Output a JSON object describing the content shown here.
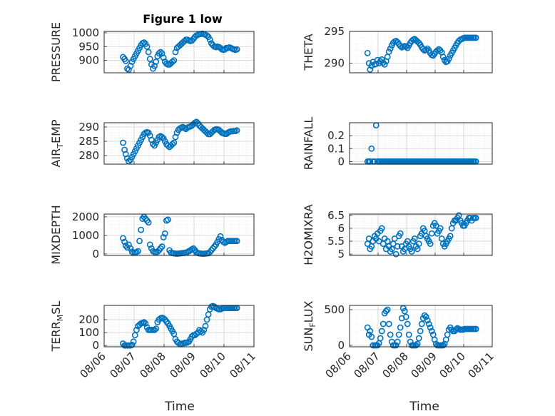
{
  "figure": {
    "title": "Figure 1 low",
    "xlabel": "Time"
  },
  "x_ticks": [
    "08/06",
    "08/07",
    "08/08",
    "08/09",
    "08/10",
    "08/11"
  ],
  "marker_color": "#0072BD",
  "chart_data": [
    {
      "type": "scatter",
      "ylabel": "PRESSURE",
      "subscript": "",
      "title": "Figure 1 low",
      "xlim": [
        0,
        5
      ],
      "ylim": [
        855,
        1005
      ],
      "yticks": [
        900,
        950,
        1000
      ],
      "x": [
        0.63,
        0.68,
        0.72,
        0.77,
        0.82,
        0.88,
        0.93,
        0.98,
        1.03,
        1.08,
        1.13,
        1.18,
        1.23,
        1.28,
        1.33,
        1.38,
        1.43,
        1.48,
        1.53,
        1.58,
        1.63,
        1.68,
        1.73,
        1.78,
        1.83,
        1.88,
        1.93,
        1.98,
        2.03,
        2.08,
        2.13,
        2.18,
        2.23,
        2.28,
        2.33,
        2.38,
        2.43,
        2.48,
        2.53,
        2.58,
        2.63,
        2.68,
        2.73,
        2.78,
        2.83,
        2.88,
        2.93,
        2.98,
        3.03,
        3.08,
        3.13,
        3.18,
        3.23,
        3.28,
        3.33,
        3.38,
        3.43,
        3.48,
        3.53,
        3.58,
        3.63,
        3.68,
        3.73,
        3.78,
        3.83,
        3.88,
        3.93,
        3.98,
        4.03,
        4.08,
        4.13,
        4.18,
        4.23,
        4.28,
        4.33,
        4.38,
        4.43
      ],
      "y": [
        912,
        905,
        898,
        870,
        866,
        880,
        895,
        905,
        915,
        925,
        935,
        945,
        955,
        962,
        965,
        960,
        950,
        930,
        905,
        885,
        870,
        880,
        895,
        915,
        925,
        930,
        925,
        910,
        895,
        888,
        885,
        885,
        890,
        895,
        900,
        930,
        945,
        950,
        955,
        960,
        965,
        970,
        975,
        975,
        972,
        970,
        972,
        978,
        985,
        990,
        993,
        995,
        996,
        997,
        995,
        993,
        990,
        985,
        975,
        962,
        955,
        950,
        948,
        950,
        948,
        945,
        940,
        938,
        940,
        945,
        945,
        947,
        945,
        942,
        940,
        938,
        940
      ]
    },
    {
      "type": "scatter",
      "ylabel": "THETA",
      "subscript": "",
      "xlim": [
        0,
        5
      ],
      "ylim": [
        288.5,
        295
      ],
      "yticks": [
        290,
        295
      ],
      "x": [
        0.63,
        0.68,
        0.72,
        0.77,
        0.82,
        0.88,
        0.93,
        0.98,
        1.03,
        1.08,
        1.13,
        1.18,
        1.23,
        1.28,
        1.33,
        1.38,
        1.43,
        1.48,
        1.53,
        1.58,
        1.63,
        1.68,
        1.73,
        1.78,
        1.83,
        1.88,
        1.93,
        1.98,
        2.03,
        2.08,
        2.13,
        2.18,
        2.23,
        2.28,
        2.33,
        2.38,
        2.43,
        2.48,
        2.53,
        2.58,
        2.63,
        2.68,
        2.73,
        2.78,
        2.83,
        2.88,
        2.93,
        2.98,
        3.03,
        3.08,
        3.13,
        3.18,
        3.23,
        3.28,
        3.33,
        3.38,
        3.43,
        3.48,
        3.53,
        3.58,
        3.63,
        3.68,
        3.73,
        3.78,
        3.83,
        3.88,
        3.93,
        3.98,
        4.03,
        4.08,
        4.13,
        4.18,
        4.23,
        4.28,
        4.33,
        4.38,
        4.43
      ],
      "y": [
        291.6,
        290.0,
        289.0,
        289.6,
        290.2,
        289.8,
        289.9,
        290.5,
        290.0,
        290.3,
        290.6,
        290.1,
        289.8,
        290.3,
        291.0,
        291.8,
        292.3,
        292.8,
        293.2,
        293.4,
        293.5,
        293.3,
        293.0,
        292.7,
        292.5,
        292.6,
        292.7,
        292.6,
        292.4,
        292.8,
        293.2,
        293.5,
        293.7,
        293.8,
        293.6,
        293.4,
        293.2,
        292.9,
        292.5,
        292.2,
        292.0,
        292.1,
        292.3,
        292.0,
        291.6,
        291.3,
        291.2,
        291.5,
        291.8,
        292.0,
        292.2,
        292.0,
        291.7,
        291.0,
        290.5,
        290.2,
        290.3,
        290.7,
        291.2,
        291.6,
        292.0,
        292.4,
        292.8,
        293.2,
        293.5,
        293.7,
        293.8,
        293.9,
        294.0,
        294.0,
        294.0,
        294.0,
        294.0,
        294.0,
        294.0,
        294.0,
        294.0
      ]
    },
    {
      "type": "scatter",
      "ylabel": "AIR",
      "subscript": "T",
      "ylabel_end": "EMP",
      "xlim": [
        0,
        5
      ],
      "ylim": [
        277,
        291.5
      ],
      "yticks": [
        280,
        285,
        290
      ],
      "x": [
        0.63,
        0.68,
        0.72,
        0.77,
        0.82,
        0.88,
        0.93,
        0.98,
        1.03,
        1.08,
        1.13,
        1.18,
        1.23,
        1.28,
        1.33,
        1.38,
        1.43,
        1.48,
        1.53,
        1.58,
        1.63,
        1.68,
        1.73,
        1.78,
        1.83,
        1.88,
        1.93,
        1.98,
        2.03,
        2.08,
        2.13,
        2.18,
        2.23,
        2.28,
        2.33,
        2.38,
        2.43,
        2.48,
        2.53,
        2.58,
        2.63,
        2.68,
        2.73,
        2.78,
        2.83,
        2.88,
        2.93,
        2.98,
        3.03,
        3.08,
        3.13,
        3.18,
        3.23,
        3.28,
        3.33,
        3.38,
        3.43,
        3.48,
        3.53,
        3.58,
        3.63,
        3.68,
        3.73,
        3.78,
        3.83,
        3.88,
        3.93,
        3.98,
        4.03,
        4.08,
        4.13,
        4.18,
        4.23,
        4.28,
        4.33,
        4.38,
        4.43
      ],
      "y": [
        284.5,
        282.0,
        280.5,
        279.0,
        278.0,
        278.5,
        279.5,
        280.5,
        281.5,
        282.5,
        283.5,
        284.5,
        285.5,
        286.5,
        287.5,
        288.0,
        288.2,
        288.0,
        287.0,
        285.5,
        284.0,
        283.5,
        284.5,
        285.5,
        286.5,
        286.8,
        286.5,
        286.0,
        285.0,
        284.0,
        283.5,
        283.0,
        283.5,
        284.0,
        284.5,
        286.5,
        288.0,
        289.0,
        289.5,
        289.8,
        290.0,
        289.6,
        289.3,
        289.8,
        290.0,
        290.2,
        290.5,
        291.0,
        291.5,
        291.8,
        291.3,
        290.5,
        290.0,
        289.5,
        289.0,
        288.5,
        288.0,
        287.5,
        287.5,
        288.0,
        288.5,
        289.0,
        289.2,
        289.2,
        289.0,
        288.5,
        288.0,
        287.8,
        287.6,
        287.6,
        288.0,
        288.3,
        288.5,
        288.5,
        288.6,
        288.6,
        288.8
      ]
    },
    {
      "type": "scatter",
      "ylabel": "RAINFALL",
      "subscript": "",
      "xlim": [
        0,
        5
      ],
      "ylim": [
        -0.02,
        0.3
      ],
      "yticks": [
        0,
        0.1,
        0.2
      ],
      "ytick_labels": [
        "0",
        "0.1",
        "0.2"
      ],
      "x": [
        0.63,
        0.68,
        0.72,
        0.77,
        0.82,
        0.88,
        0.93,
        0.98,
        1.03,
        1.08,
        1.13,
        1.18,
        1.23,
        1.28,
        1.33,
        1.38,
        1.43,
        1.48,
        1.53,
        1.58,
        1.63,
        1.68,
        1.73,
        1.78,
        1.83,
        1.88,
        1.93,
        1.98,
        2.03,
        2.08,
        2.13,
        2.18,
        2.23,
        2.28,
        2.33,
        2.38,
        2.43,
        2.48,
        2.53,
        2.58,
        2.63,
        2.68,
        2.73,
        2.78,
        2.83,
        2.88,
        2.93,
        2.98,
        3.03,
        3.08,
        3.13,
        3.18,
        3.23,
        3.28,
        3.33,
        3.38,
        3.43,
        3.48,
        3.53,
        3.58,
        3.63,
        3.68,
        3.73,
        3.78,
        3.83,
        3.88,
        3.93,
        3.98,
        4.03,
        4.08,
        4.13,
        4.18,
        4.23,
        4.28,
        4.33,
        4.38,
        4.43
      ],
      "y": [
        0,
        0,
        0,
        0.1,
        0,
        0,
        0.28,
        0,
        0,
        0,
        0,
        0,
        0,
        0,
        0,
        0,
        0,
        0,
        0,
        0,
        0,
        0,
        0,
        0,
        0,
        0,
        0,
        0,
        0,
        0,
        0,
        0,
        0,
        0,
        0,
        0,
        0,
        0,
        0,
        0,
        0,
        0,
        0,
        0,
        0,
        0,
        0,
        0,
        0,
        0,
        0,
        0,
        0,
        0,
        0,
        0,
        0,
        0,
        0,
        0,
        0,
        0,
        0,
        0,
        0,
        0,
        0,
        0,
        0,
        0,
        0,
        0,
        0,
        0,
        0,
        0,
        0
      ]
    },
    {
      "type": "scatter",
      "ylabel": "MIXDEPTH",
      "subscript": "",
      "xlim": [
        0,
        5
      ],
      "ylim": [
        -80,
        2150
      ],
      "yticks": [
        0,
        1000,
        2000
      ],
      "x": [
        0.63,
        0.68,
        0.72,
        0.77,
        0.82,
        0.88,
        0.93,
        0.98,
        1.03,
        1.08,
        1.13,
        1.18,
        1.23,
        1.28,
        1.33,
        1.38,
        1.43,
        1.48,
        1.53,
        1.58,
        1.63,
        1.68,
        1.73,
        1.78,
        1.83,
        1.88,
        1.93,
        1.98,
        2.03,
        2.08,
        2.13,
        2.18,
        2.23,
        2.28,
        2.33,
        2.38,
        2.43,
        2.48,
        2.53,
        2.58,
        2.63,
        2.68,
        2.73,
        2.78,
        2.83,
        2.88,
        2.93,
        2.98,
        3.03,
        3.08,
        3.13,
        3.18,
        3.23,
        3.28,
        3.33,
        3.38,
        3.43,
        3.48,
        3.53,
        3.58,
        3.63,
        3.68,
        3.73,
        3.78,
        3.83,
        3.88,
        3.93,
        3.98,
        4.03,
        4.08,
        4.13,
        4.18,
        4.23,
        4.28,
        4.33,
        4.38,
        4.43
      ],
      "y": [
        850,
        650,
        450,
        350,
        500,
        300,
        120,
        60,
        80,
        100,
        150,
        700,
        1300,
        1900,
        2000,
        1900,
        1800,
        1700,
        500,
        300,
        150,
        100,
        80,
        120,
        200,
        300,
        400,
        900,
        1100,
        1800,
        1850,
        200,
        80,
        50,
        30,
        20,
        10,
        20,
        30,
        40,
        50,
        60,
        80,
        100,
        150,
        200,
        250,
        300,
        200,
        100,
        50,
        30,
        20,
        10,
        10,
        20,
        30,
        40,
        100,
        200,
        300,
        400,
        500,
        650,
        800,
        950,
        750,
        650,
        600,
        650,
        700,
        700,
        700,
        700,
        700,
        700,
        700
      ]
    },
    {
      "type": "scatter",
      "ylabel": "H2OMIXRA",
      "subscript": "",
      "xlim": [
        0,
        5
      ],
      "ylim": [
        4.95,
        6.55
      ],
      "yticks": [
        5,
        5.5,
        6,
        6.5
      ],
      "ytick_labels": [
        "5",
        "5.5",
        "6",
        "6.5"
      ],
      "x": [
        0.63,
        0.68,
        0.72,
        0.77,
        0.82,
        0.88,
        0.93,
        0.98,
        1.03,
        1.08,
        1.13,
        1.18,
        1.23,
        1.28,
        1.33,
        1.38,
        1.43,
        1.48,
        1.53,
        1.58,
        1.63,
        1.68,
        1.73,
        1.78,
        1.83,
        1.88,
        1.93,
        1.98,
        2.03,
        2.08,
        2.13,
        2.18,
        2.23,
        2.28,
        2.33,
        2.38,
        2.43,
        2.48,
        2.53,
        2.58,
        2.63,
        2.68,
        2.73,
        2.78,
        2.83,
        2.88,
        2.93,
        2.98,
        3.03,
        3.08,
        3.13,
        3.18,
        3.23,
        3.28,
        3.33,
        3.38,
        3.43,
        3.48,
        3.53,
        3.58,
        3.63,
        3.68,
        3.73,
        3.78,
        3.83,
        3.88,
        3.93,
        3.98,
        4.03,
        4.08,
        4.13,
        4.18,
        4.23,
        4.28,
        4.33,
        4.38,
        4.43
      ],
      "y": [
        5.4,
        5.6,
        5.2,
        5.3,
        5.5,
        5.7,
        5.6,
        5.8,
        5.5,
        5.9,
        6.0,
        5.4,
        5.6,
        5.2,
        5.5,
        5.3,
        5.1,
        5.2,
        5.4,
        5.6,
        5.0,
        5.3,
        5.7,
        5.8,
        5.3,
        5.1,
        5.2,
        5.4,
        5.5,
        5.3,
        5.2,
        5.1,
        5.5,
        5.6,
        5.3,
        5.2,
        5.4,
        5.7,
        5.8,
        6.0,
        5.9,
        5.7,
        5.6,
        5.5,
        5.4,
        5.8,
        6.1,
        6.2,
        6.1,
        5.8,
        5.9,
        6.0,
        5.6,
        5.4,
        5.3,
        5.4,
        5.5,
        5.6,
        5.7,
        6.0,
        6.2,
        6.3,
        6.3,
        6.4,
        6.5,
        6.3,
        6.2,
        6.1,
        6.1,
        6.2,
        6.3,
        6.4,
        6.4,
        6.3,
        6.4,
        6.4,
        6.4
      ]
    },
    {
      "type": "scatter",
      "ylabel": "TERR",
      "subscript": "M",
      "ylabel_end": "SL",
      "xlim": [
        0,
        5
      ],
      "ylim": [
        -10,
        310
      ],
      "yticks": [
        0,
        100,
        200
      ],
      "x": [
        0.63,
        0.68,
        0.72,
        0.77,
        0.82,
        0.88,
        0.93,
        0.98,
        1.03,
        1.08,
        1.13,
        1.18,
        1.23,
        1.28,
        1.33,
        1.38,
        1.43,
        1.48,
        1.53,
        1.58,
        1.63,
        1.68,
        1.73,
        1.78,
        1.83,
        1.88,
        1.93,
        1.98,
        2.03,
        2.08,
        2.13,
        2.18,
        2.23,
        2.28,
        2.33,
        2.38,
        2.43,
        2.48,
        2.53,
        2.58,
        2.63,
        2.68,
        2.73,
        2.78,
        2.83,
        2.88,
        2.93,
        2.98,
        3.03,
        3.08,
        3.13,
        3.18,
        3.23,
        3.28,
        3.33,
        3.38,
        3.43,
        3.48,
        3.53,
        3.58,
        3.63,
        3.68,
        3.73,
        3.78,
        3.83,
        3.88,
        3.93,
        3.98,
        4.03,
        4.08,
        4.13,
        4.18,
        4.23,
        4.28,
        4.33,
        4.38,
        4.43
      ],
      "y": [
        15,
        0,
        0,
        0,
        0,
        0,
        5,
        30,
        80,
        120,
        150,
        160,
        170,
        175,
        180,
        170,
        140,
        120,
        120,
        120,
        120,
        120,
        130,
        180,
        200,
        210,
        215,
        210,
        200,
        185,
        170,
        150,
        130,
        110,
        90,
        50,
        30,
        20,
        10,
        10,
        15,
        20,
        20,
        25,
        30,
        50,
        70,
        80,
        80,
        90,
        100,
        120,
        110,
        100,
        120,
        150,
        200,
        240,
        280,
        300,
        305,
        300,
        290,
        285,
        280,
        280,
        285,
        290,
        290,
        290,
        290,
        290,
        290,
        290,
        290,
        290,
        290
      ]
    },
    {
      "type": "scatter",
      "ylabel": "SUN",
      "subscript": "F",
      "ylabel_end": "LUX",
      "xlim": [
        0,
        5
      ],
      "ylim": [
        -20,
        560
      ],
      "yticks": [
        0,
        500
      ],
      "x": [
        0.63,
        0.68,
        0.72,
        0.77,
        0.82,
        0.88,
        0.93,
        0.98,
        1.03,
        1.08,
        1.13,
        1.18,
        1.23,
        1.28,
        1.33,
        1.38,
        1.43,
        1.48,
        1.53,
        1.58,
        1.63,
        1.68,
        1.73,
        1.78,
        1.83,
        1.88,
        1.93,
        1.98,
        2.03,
        2.08,
        2.13,
        2.18,
        2.23,
        2.28,
        2.33,
        2.38,
        2.43,
        2.48,
        2.53,
        2.58,
        2.63,
        2.68,
        2.73,
        2.78,
        2.83,
        2.88,
        2.93,
        2.98,
        3.03,
        3.08,
        3.13,
        3.18,
        3.23,
        3.28,
        3.33,
        3.38,
        3.43,
        3.48,
        3.53,
        3.58,
        3.63,
        3.68,
        3.73,
        3.78,
        3.83,
        3.88,
        3.93,
        3.98,
        4.03,
        4.08,
        4.13,
        4.18,
        4.23,
        4.28,
        4.33,
        4.38,
        4.43
      ],
      "y": [
        250,
        150,
        200,
        120,
        0,
        0,
        0,
        0,
        30,
        100,
        200,
        300,
        450,
        480,
        500,
        300,
        150,
        50,
        0,
        0,
        0,
        50,
        150,
        250,
        380,
        520,
        480,
        400,
        300,
        150,
        50,
        0,
        0,
        0,
        0,
        20,
        100,
        200,
        300,
        380,
        420,
        400,
        350,
        300,
        250,
        200,
        150,
        80,
        20,
        0,
        0,
        0,
        0,
        0,
        20,
        80,
        150,
        220,
        250,
        220,
        200,
        200,
        220,
        240,
        230,
        220,
        220,
        220,
        230,
        230,
        230,
        230,
        230,
        230,
        230,
        230,
        230
      ]
    }
  ]
}
